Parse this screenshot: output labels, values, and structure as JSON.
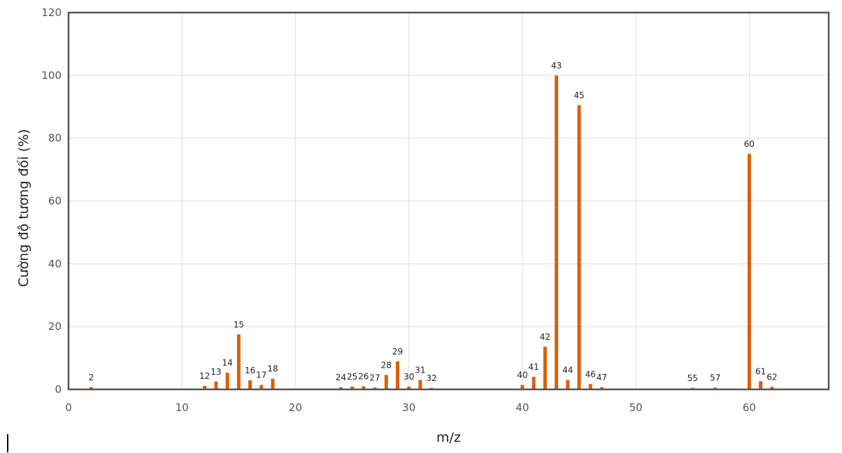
{
  "chart_data": {
    "type": "bar",
    "xlabel": "m/z",
    "ylabel": "Cường độ tương đối (%)",
    "xlim": [
      0,
      67
    ],
    "ylim": [
      0,
      120
    ],
    "xticks": [
      0,
      10,
      20,
      30,
      40,
      50,
      60
    ],
    "yticks": [
      0,
      20,
      40,
      60,
      80,
      100,
      120
    ],
    "grid": true,
    "bar_color": "#d9600a",
    "x": [
      2,
      12,
      13,
      14,
      15,
      16,
      17,
      18,
      24,
      25,
      26,
      27,
      28,
      29,
      30,
      31,
      32,
      40,
      41,
      42,
      43,
      44,
      45,
      46,
      47,
      55,
      57,
      60,
      61,
      62
    ],
    "values": [
      0.7,
      1.1,
      2.5,
      5.3,
      17.5,
      2.9,
      1.4,
      3.4,
      0.7,
      0.9,
      1.0,
      0.6,
      4.6,
      8.9,
      0.9,
      3.0,
      0.5,
      1.4,
      4.0,
      13.6,
      100,
      3.0,
      90.5,
      1.7,
      0.7,
      0.5,
      0.6,
      75,
      2.6,
      0.8
    ],
    "labels": [
      "2",
      "12",
      "13",
      "14",
      "15",
      "16",
      "17",
      "18",
      "24",
      "25",
      "26",
      "27",
      "28",
      "29",
      "30",
      "31",
      "32",
      "40",
      "41",
      "42",
      "43",
      "44",
      "45",
      "46",
      "47",
      "55",
      "57",
      "60",
      "61",
      "62"
    ]
  }
}
